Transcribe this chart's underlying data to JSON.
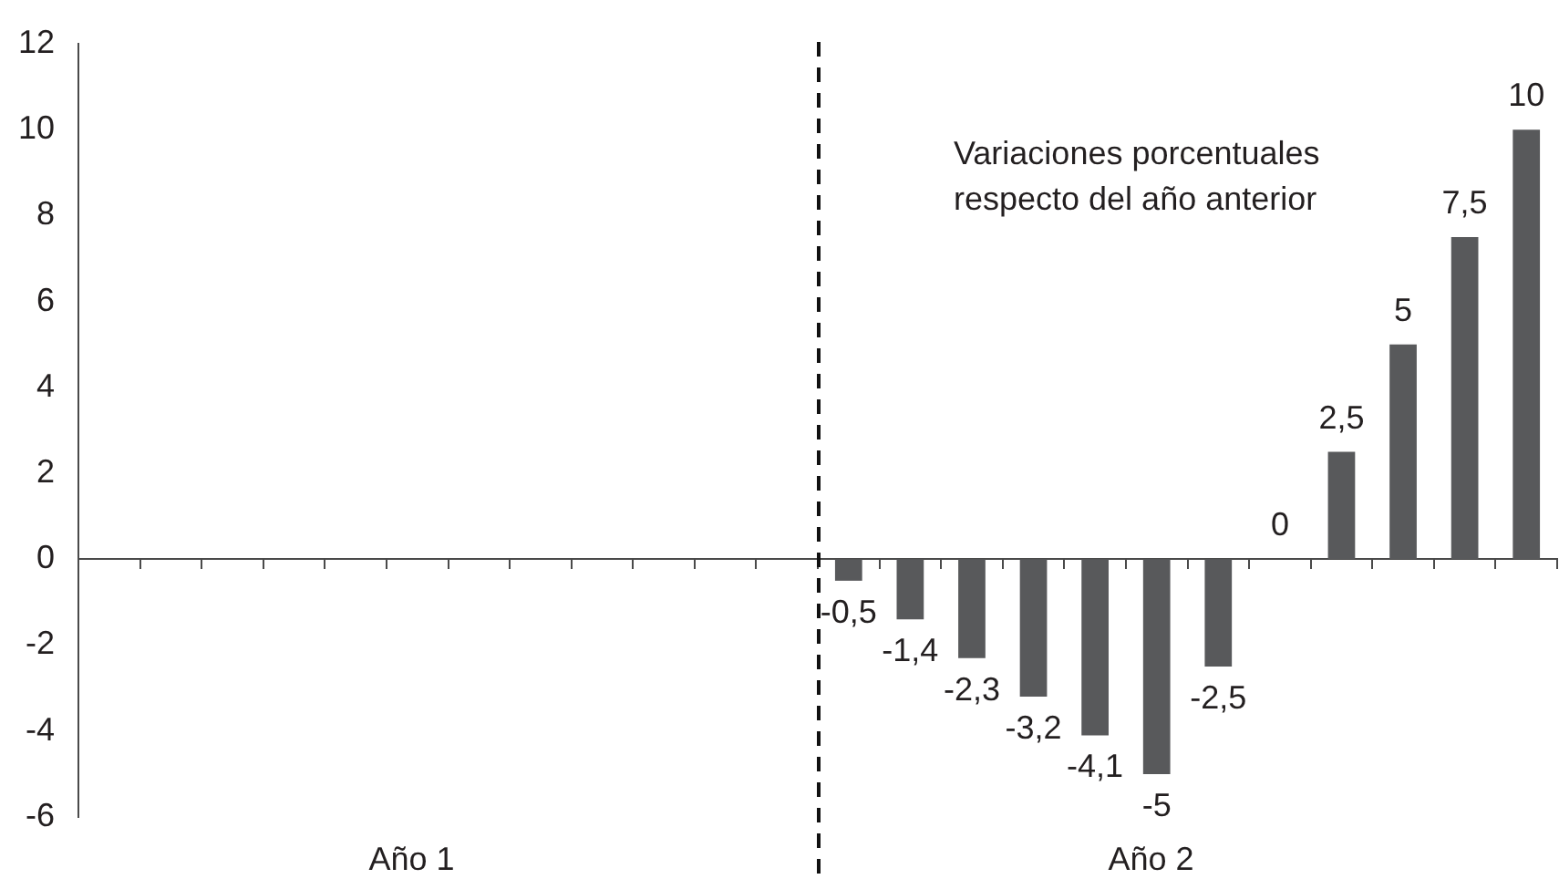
{
  "chart_data": {
    "type": "bar",
    "categories": [
      null,
      null,
      null,
      null,
      null,
      null,
      null,
      null,
      null,
      null,
      null,
      null,
      null,
      null,
      null,
      null,
      null,
      null,
      null,
      null,
      null,
      null,
      null,
      null
    ],
    "values": [
      null,
      null,
      null,
      null,
      null,
      null,
      null,
      null,
      null,
      null,
      null,
      null,
      -0.5,
      -1.4,
      -2.3,
      -3.2,
      -4.1,
      -5,
      -2.5,
      0,
      2.5,
      5,
      7.5,
      10
    ],
    "value_labels": [
      null,
      null,
      null,
      null,
      null,
      null,
      null,
      null,
      null,
      null,
      null,
      null,
      "-0,5",
      "-1,4",
      "-2,3",
      "-3,2",
      "-4,1",
      "-5",
      "-2,5",
      "0",
      "2,5",
      "5",
      "7,5",
      "10"
    ],
    "color": "#58595b",
    "ylim": [
      -6,
      12
    ],
    "yticks": [
      -6,
      -4,
      -2,
      0,
      2,
      4,
      6,
      8,
      10,
      12
    ],
    "annotations": [
      "Variaciones porcentuales respecto del año anterior",
      "Año 1",
      "Año 2"
    ]
  }
}
